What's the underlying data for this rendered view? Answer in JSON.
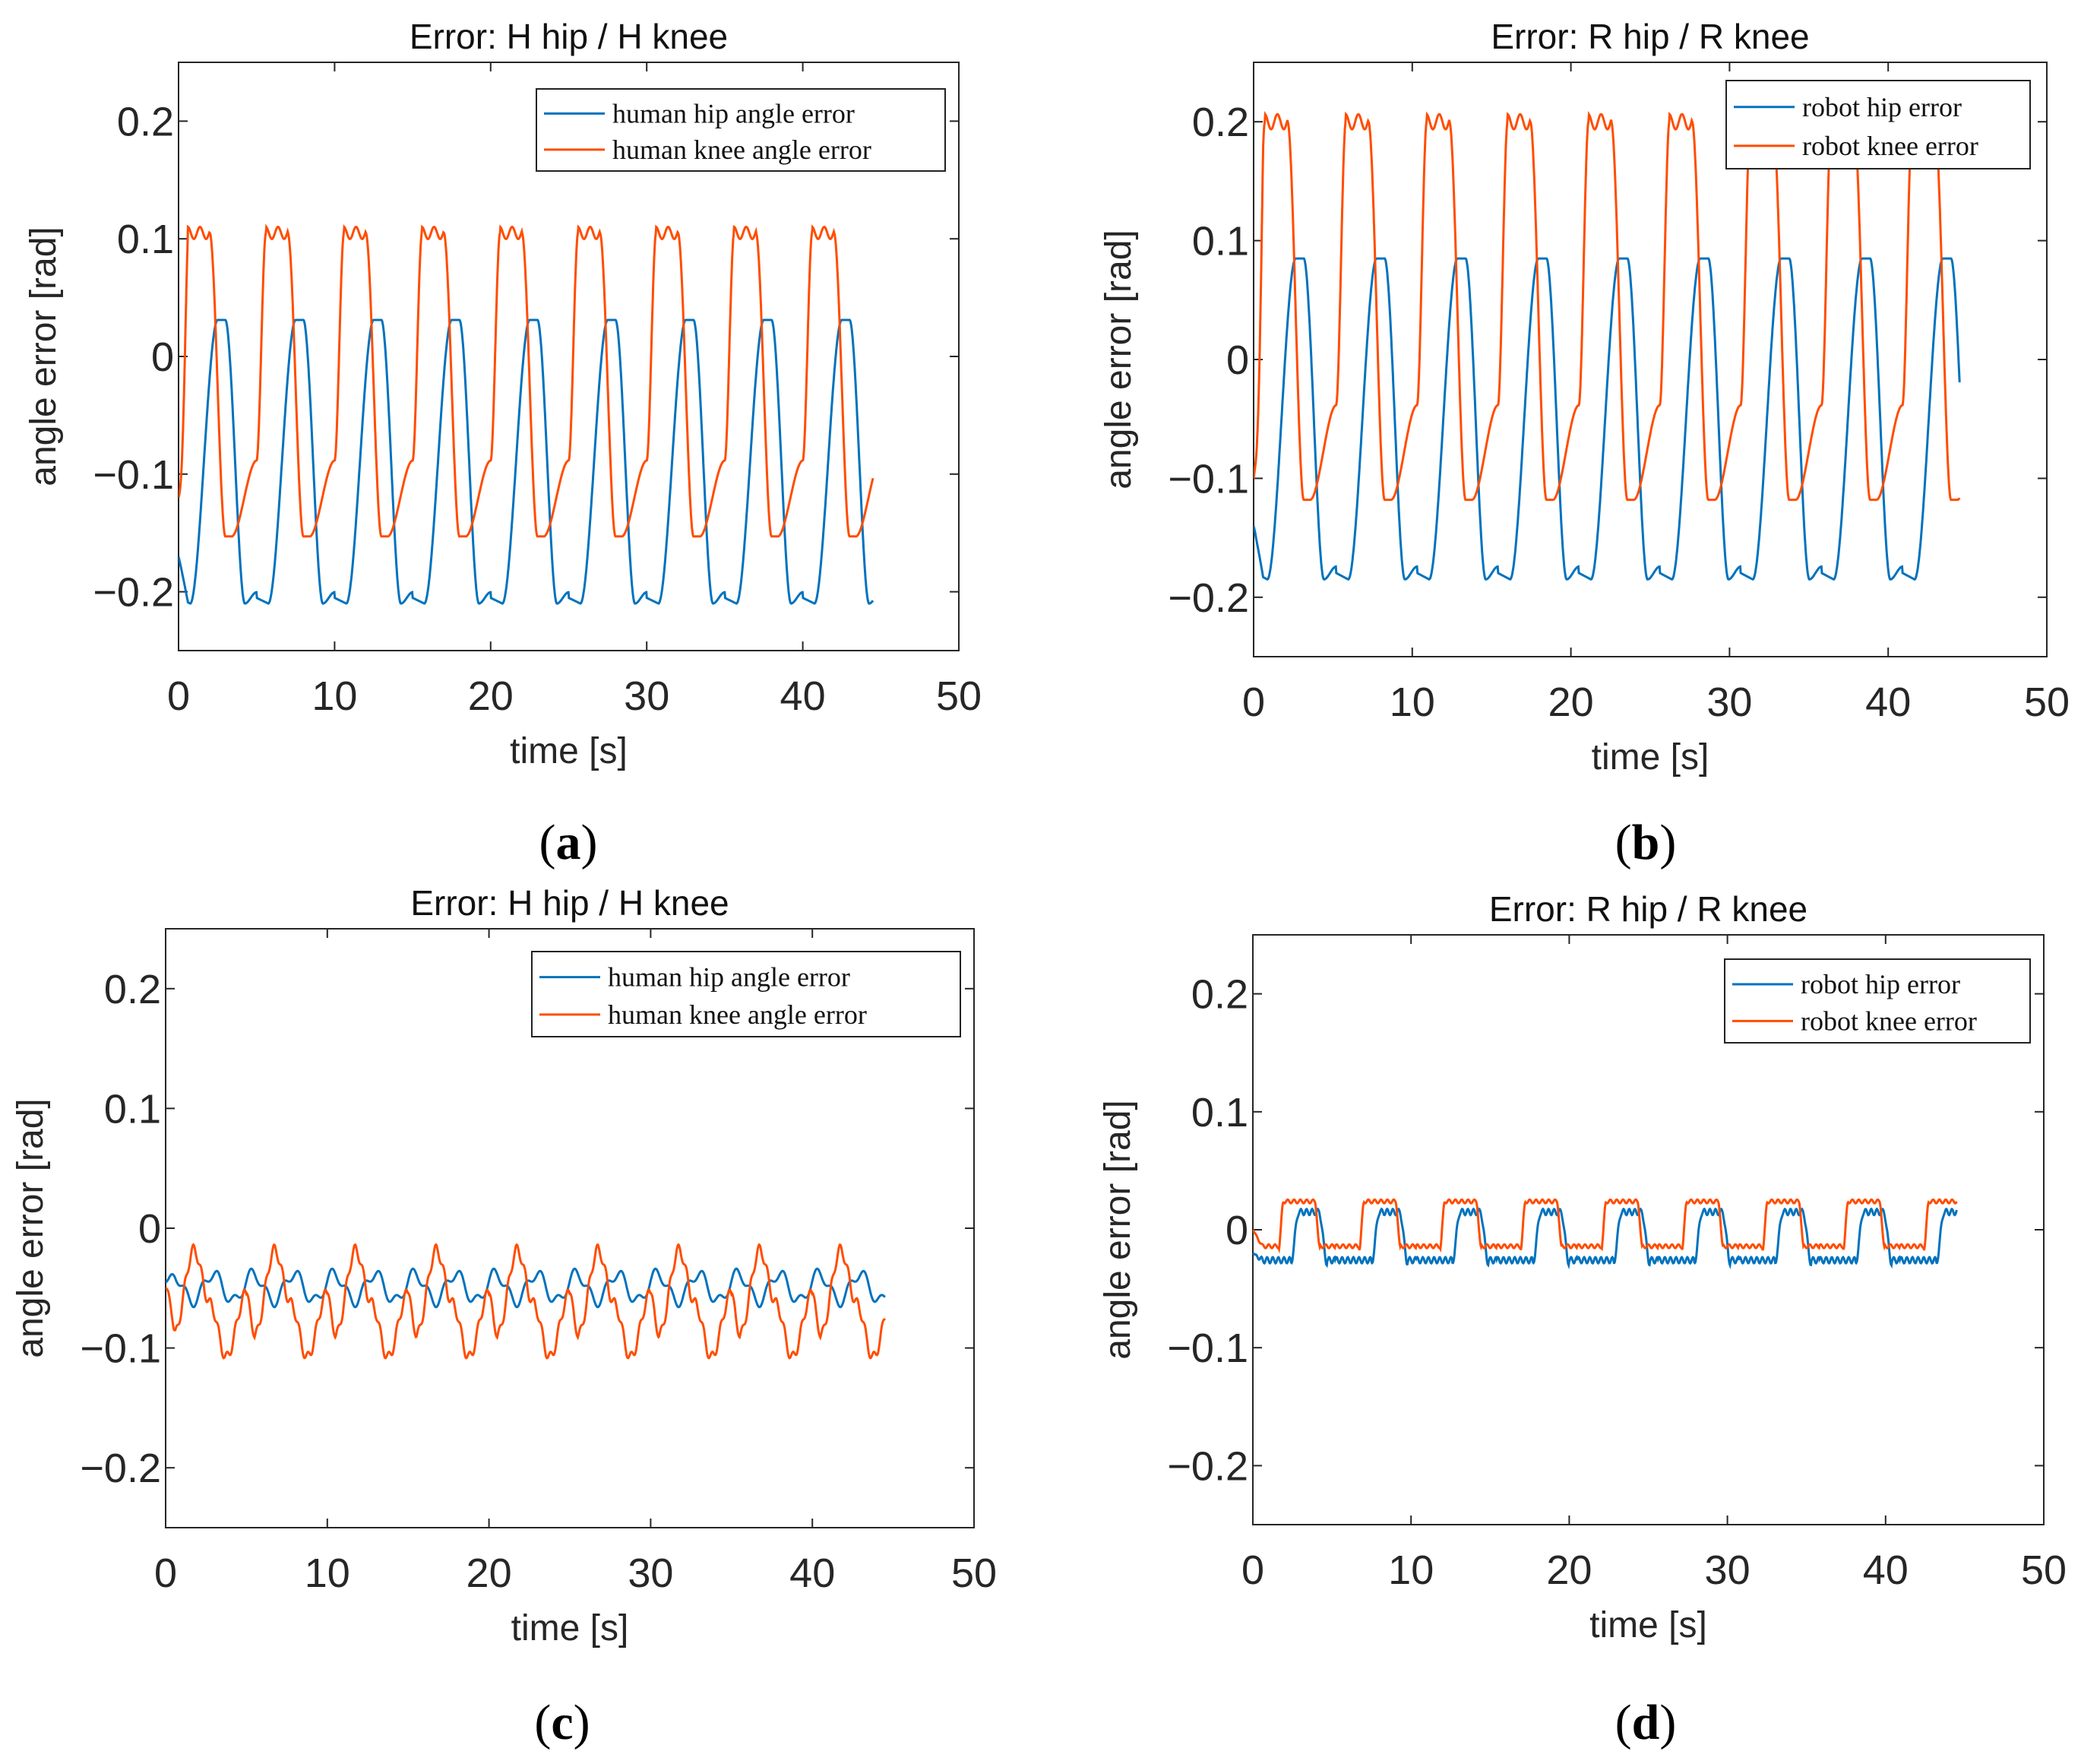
{
  "colors": {
    "hip": "#0072bd",
    "knee": "#ff4d00",
    "axis": "#262626",
    "tick_mark": "#262626"
  },
  "chart_data": [
    {
      "type": "line",
      "panel": "(a)",
      "caption_letter": "a",
      "title": "Error: H hip / H knee",
      "xlabel": "time [s]",
      "ylabel": "angle error [rad]",
      "xlim": [
        0,
        50
      ],
      "ylim": [
        -0.25,
        0.25
      ],
      "xticks": [
        0,
        10,
        20,
        30,
        40,
        50
      ],
      "yticks": [
        -0.2,
        -0.1,
        0,
        0.1,
        0.2
      ],
      "xtick_labels": [
        "0",
        "10",
        "20",
        "30",
        "40",
        "50"
      ],
      "ytick_labels": [
        "−0.2",
        "−0.1",
        "0",
        "0.1",
        "0.2"
      ],
      "grid": false,
      "legend_position": "top-right",
      "series": [
        {
          "name": "human hip angle error",
          "kind": "hip",
          "period": 5.0,
          "phase": 0.0,
          "min": -0.21,
          "max": 0.031,
          "t_end": 44.5,
          "start": -0.17
        },
        {
          "name": "human knee angle error",
          "kind": "knee",
          "period": 5.0,
          "phase": 0.0,
          "min": -0.153,
          "max": 0.105,
          "t_end": 44.5,
          "start": -0.12
        }
      ]
    },
    {
      "type": "line",
      "panel": "(b)",
      "caption_letter": "b",
      "title": "Error:  R hip / R knee",
      "xlabel": "time [s]",
      "ylabel": "angle error [rad]",
      "xlim": [
        0,
        50
      ],
      "ylim": [
        -0.25,
        0.25
      ],
      "xticks": [
        0,
        10,
        20,
        30,
        40,
        50
      ],
      "yticks": [
        -0.2,
        -0.1,
        0,
        0.1,
        0.2
      ],
      "xtick_labels": [
        "0",
        "10",
        "20",
        "30",
        "40",
        "50"
      ],
      "ytick_labels": [
        "−0.2",
        "−0.1",
        "0",
        "0.1",
        "0.2"
      ],
      "grid": false,
      "legend_position": "top-right",
      "series": [
        {
          "name": "robot hip error",
          "kind": "hip",
          "period": 5.1,
          "phase": 0.1,
          "min": -0.185,
          "max": 0.085,
          "t_end": 44.5,
          "start": -0.14
        },
        {
          "name": "robot knee error",
          "kind": "knee",
          "period": 5.1,
          "phase": 0.1,
          "min": -0.118,
          "max": 0.2,
          "t_end": 44.5,
          "start": -0.1
        }
      ]
    },
    {
      "type": "line",
      "panel": "(c)",
      "caption_letter": "c",
      "title": "Error: H hip / H knee",
      "xlabel": "time [s]",
      "ylabel": "angle error [rad]",
      "xlim": [
        0,
        50
      ],
      "ylim": [
        -0.25,
        0.25
      ],
      "xticks": [
        0,
        10,
        20,
        30,
        40,
        50
      ],
      "yticks": [
        -0.2,
        -0.1,
        0,
        0.1,
        0.2
      ],
      "xtick_labels": [
        "0",
        "10",
        "20",
        "30",
        "40",
        "50"
      ],
      "ytick_labels": [
        "−0.2",
        "−0.1",
        "0",
        "0.1",
        "0.2"
      ],
      "grid": false,
      "legend_position": "top-right",
      "series": [
        {
          "name": "human hip angle error",
          "kind": "hip-small",
          "period": 5.0,
          "phase": 0.0,
          "min": -0.066,
          "max": -0.033,
          "t_end": 44.5,
          "start": -0.045
        },
        {
          "name": "human knee angle error",
          "kind": "knee-small",
          "period": 5.0,
          "phase": 0.0,
          "min": -0.108,
          "max": -0.018,
          "t_end": 44.5,
          "start": -0.05
        }
      ]
    },
    {
      "type": "line",
      "panel": "(d)",
      "caption_letter": "d",
      "title": "Error:  R hip / R knee",
      "xlabel": "time [s]",
      "ylabel": "angle error [rad]",
      "xlim": [
        0,
        50
      ],
      "ylim": [
        -0.25,
        0.25
      ],
      "xticks": [
        0,
        10,
        20,
        30,
        40,
        50
      ],
      "yticks": [
        -0.2,
        -0.1,
        0,
        0.1,
        0.2
      ],
      "xtick_labels": [
        "0",
        "10",
        "20",
        "30",
        "40",
        "50"
      ],
      "ytick_labels": [
        "−0.2",
        "−0.1",
        "0",
        "0.1",
        "0.2"
      ],
      "grid": false,
      "legend_position": "top-right",
      "series": [
        {
          "name": "robot hip error",
          "kind": "hip-step",
          "period": 5.1,
          "phase": 0.1,
          "min": -0.028,
          "max": 0.015,
          "t_end": 44.5,
          "start": -0.02
        },
        {
          "name": "robot knee error",
          "kind": "knee-step",
          "period": 5.1,
          "phase": 0.1,
          "min": -0.016,
          "max": 0.024,
          "t_end": 44.5,
          "start": 0.0
        }
      ]
    }
  ]
}
